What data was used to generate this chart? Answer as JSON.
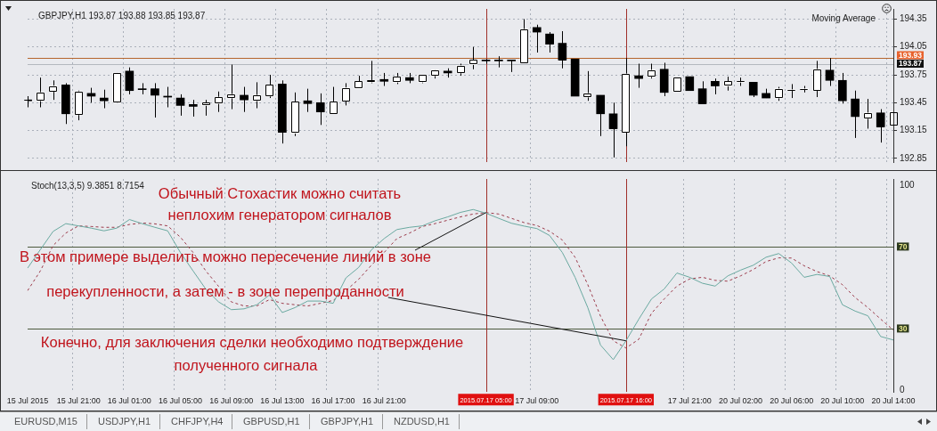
{
  "chart_data": [
    {
      "type": "candlestick",
      "title": "GBPJPY,H1 193.87 193.88 193.85 193.87",
      "annotations": [
        "Moving Average"
      ],
      "categories": [
        "15 Jul 2015",
        null,
        null,
        null,
        "15 Jul 21:00",
        null,
        null,
        null,
        "16 Jul 01:00",
        null,
        null,
        null,
        "16 Jul 05:00",
        null,
        null,
        null,
        "16 Jul 09:00",
        null,
        null,
        null,
        "16 Jul 13:00",
        null,
        null,
        null,
        "16 Jul 17:00",
        null,
        null,
        null,
        "16 Jul 21:00",
        null,
        null,
        null,
        null,
        null,
        null,
        null,
        "2015.07.17 05:00",
        null,
        null,
        null,
        "17 Jul 09:00",
        null,
        null,
        null,
        null,
        null,
        null,
        "2015.07.17 16:00",
        null,
        null,
        null,
        null,
        "17 Jul 21:00",
        null,
        null,
        null,
        "20 Jul 02:00",
        null,
        null,
        null,
        "20 Jul 06:00",
        null,
        null,
        null,
        "20 Jul 10:00",
        null,
        null,
        null,
        "20 Jul 14:00"
      ],
      "ohlc": [
        [
          193.48,
          193.52,
          193.4,
          193.47
        ],
        [
          193.47,
          193.72,
          193.4,
          193.56
        ],
        [
          193.57,
          193.69,
          193.48,
          193.63
        ],
        [
          193.64,
          193.66,
          193.22,
          193.33
        ],
        [
          193.32,
          193.58,
          193.26,
          193.57
        ],
        [
          193.55,
          193.61,
          193.45,
          193.52
        ],
        [
          193.5,
          193.59,
          193.39,
          193.47
        ],
        [
          193.45,
          193.77,
          193.45,
          193.77
        ],
        [
          193.79,
          193.83,
          193.54,
          193.58
        ],
        [
          193.6,
          193.66,
          193.54,
          193.59
        ],
        [
          193.6,
          193.66,
          193.29,
          193.53
        ],
        [
          193.52,
          193.62,
          193.4,
          193.51
        ],
        [
          193.5,
          193.54,
          193.31,
          193.42
        ],
        [
          193.43,
          193.48,
          193.3,
          193.41
        ],
        [
          193.42,
          193.48,
          193.31,
          193.45
        ],
        [
          193.44,
          193.57,
          193.35,
          193.51
        ],
        [
          193.5,
          193.86,
          193.38,
          193.54
        ],
        [
          193.53,
          193.62,
          193.35,
          193.48
        ],
        [
          193.47,
          193.67,
          193.39,
          193.53
        ],
        [
          193.52,
          193.75,
          193.5,
          193.64
        ],
        [
          193.65,
          193.69,
          193.01,
          193.13
        ],
        [
          193.12,
          193.56,
          193.09,
          193.46
        ],
        [
          193.47,
          193.6,
          193.35,
          193.44
        ],
        [
          193.45,
          193.55,
          193.21,
          193.35
        ],
        [
          193.33,
          193.62,
          193.33,
          193.46
        ],
        [
          193.47,
          193.66,
          193.42,
          193.61
        ],
        [
          193.6,
          193.74,
          193.6,
          193.68
        ],
        [
          193.67,
          193.9,
          193.66,
          193.69
        ],
        [
          193.7,
          193.77,
          193.63,
          193.68
        ],
        [
          193.67,
          193.77,
          193.65,
          193.73
        ],
        [
          193.72,
          193.77,
          193.66,
          193.69
        ],
        [
          193.67,
          193.75,
          193.66,
          193.75
        ],
        [
          193.74,
          193.8,
          193.71,
          193.8
        ],
        [
          193.79,
          193.82,
          193.72,
          193.77
        ],
        [
          193.77,
          193.87,
          193.74,
          193.85
        ],
        [
          193.86,
          194.05,
          193.81,
          193.91
        ],
        [
          193.91,
          193.92,
          193.87,
          193.9
        ],
        [
          193.91,
          193.95,
          193.83,
          193.9
        ],
        [
          193.91,
          193.91,
          193.78,
          193.9
        ],
        [
          193.88,
          194.35,
          193.88,
          194.24
        ],
        [
          194.26,
          194.29,
          193.99,
          194.21
        ],
        [
          194.19,
          194.21,
          193.99,
          194.08
        ],
        [
          194.09,
          194.22,
          193.82,
          193.91
        ],
        [
          193.92,
          193.92,
          193.52,
          193.52
        ],
        [
          193.51,
          193.79,
          193.47,
          193.55
        ],
        [
          193.53,
          193.53,
          193.09,
          193.33
        ],
        [
          193.33,
          193.45,
          192.86,
          193.17
        ],
        [
          193.13,
          193.93,
          192.98,
          193.76
        ],
        [
          193.74,
          193.87,
          193.61,
          193.71
        ],
        [
          193.73,
          193.87,
          193.71,
          193.8
        ],
        [
          193.81,
          193.88,
          193.52,
          193.56
        ],
        [
          193.57,
          193.72,
          193.57,
          193.72
        ],
        [
          193.73,
          193.73,
          193.58,
          193.58
        ],
        [
          193.6,
          193.68,
          193.44,
          193.44
        ],
        [
          193.68,
          193.71,
          193.54,
          193.63
        ],
        [
          193.63,
          193.73,
          193.58,
          193.68
        ],
        [
          193.67,
          193.72,
          193.63,
          193.68
        ],
        [
          193.67,
          193.67,
          193.51,
          193.53
        ],
        [
          193.55,
          193.6,
          193.5,
          193.5
        ],
        [
          193.5,
          193.62,
          193.47,
          193.6
        ],
        [
          193.58,
          193.65,
          193.5,
          193.59
        ],
        [
          193.59,
          193.63,
          193.56,
          193.6
        ],
        [
          193.58,
          193.9,
          193.51,
          193.81
        ],
        [
          193.8,
          193.93,
          193.63,
          193.69
        ],
        [
          193.69,
          193.77,
          193.44,
          193.47
        ],
        [
          193.49,
          193.58,
          193.07,
          193.3
        ],
        [
          193.28,
          193.49,
          193.17,
          193.34
        ],
        [
          193.34,
          193.38,
          193.02,
          193.19
        ],
        [
          193.21,
          193.47,
          193.14,
          193.35
        ]
      ],
      "colors": [
        "#000000",
        "#ffffff",
        "#ffffff",
        "#000000",
        "#ffffff",
        "#000000",
        "#000000",
        "#ffffff",
        "#000000",
        "#000000",
        "#000000",
        "#000000",
        "#000000",
        "#000000",
        "#ffffff",
        "#ffffff",
        "#ffffff",
        "#000000",
        "#ffffff",
        "#ffffff",
        "#000000",
        "#ffffff",
        "#000000",
        "#000000",
        "#ffffff",
        "#ffffff",
        "#ffffff",
        "#ffffff",
        "#000000",
        "#ffffff",
        "#000000",
        "#ffffff",
        "#ffffff",
        "#000000",
        "#ffffff",
        "#ffffff",
        "#000000",
        "#000000",
        "#000000",
        "#ffffff",
        "#000000",
        "#000000",
        "#000000",
        "#000000",
        "#ffffff",
        "#000000",
        "#000000",
        "#ffffff",
        "#000000",
        "#ffffff",
        "#000000",
        "#ffffff",
        "#000000",
        "#000000",
        "#000000",
        "#ffffff",
        "#ffffff",
        "#000000",
        "#000000",
        "#ffffff",
        "#ffffff",
        "#ffffff",
        "#ffffff",
        "#000000",
        "#000000",
        "#000000",
        "#ffffff",
        "#000000",
        "#ffffff"
      ],
      "ylim": [
        192.81,
        194.46
      ],
      "yticks": [
        192.85,
        193.15,
        193.45,
        193.75,
        194.05,
        194.35
      ],
      "ref_lines": [
        {
          "axis": "y",
          "value": 193.93,
          "label": "193.93",
          "color": "#b5652d"
        },
        {
          "axis": "y",
          "value": 193.87,
          "label": "193.87",
          "color": "#b4b8bf"
        },
        {
          "axis": "x",
          "value": "2015.07.17 05:00",
          "color": "#a0302a"
        },
        {
          "axis": "x",
          "value": "2015.07.17 16:00",
          "color": "#a0302a"
        }
      ],
      "grid": true,
      "tick_labels": "y",
      "legend": false
    },
    {
      "type": "line",
      "title": "Stoch(13,3,5) 9.3851 8.7154",
      "categories": [
        "15 Jul 2015",
        null,
        null,
        null,
        "15 Jul 21:00",
        null,
        null,
        null,
        "16 Jul 01:00",
        null,
        null,
        null,
        "16 Jul 05:00",
        null,
        null,
        null,
        "16 Jul 09:00",
        null,
        null,
        null,
        "16 Jul 13:00",
        null,
        null,
        null,
        "16 Jul 17:00",
        null,
        null,
        null,
        "16 Jul 21:00",
        null,
        null,
        null,
        null,
        null,
        null,
        null,
        "2015.07.17 05:00",
        null,
        null,
        null,
        "17 Jul 09:00",
        null,
        null,
        null,
        null,
        null,
        null,
        "2015.07.17 16:00",
        null,
        null,
        null,
        null,
        "17 Jul 21:00",
        null,
        null,
        null,
        "20 Jul 02:00",
        null,
        null,
        null,
        "20 Jul 06:00",
        null,
        null,
        null,
        "20 Jul 10:00",
        null,
        null,
        null,
        "20 Jul 14:00"
      ],
      "series": [
        {
          "color": "#6aa9a0",
          "line_style": "solid",
          "values": [
            59.5,
            68.5,
            77.4,
            81.2,
            80.1,
            79,
            77.7,
            79,
            83.2,
            81.2,
            79.4,
            77.7,
            67.1,
            58.1,
            49.2,
            43,
            39.2,
            39.6,
            41.6,
            46.4,
            37.8,
            40.2,
            43.4,
            43.4,
            42.3,
            54.7,
            59.8,
            68.4,
            73.9,
            78.3,
            79.4,
            80.1,
            82.6,
            84.5,
            86.7,
            88.1,
            86.3,
            83.8,
            81.4,
            80,
            78.8,
            75.4,
            67.1,
            55,
            40.2,
            21.9,
            14.8,
            24,
            34.5,
            44.4,
            49.3,
            57.1,
            55,
            52.1,
            50.7,
            55.7,
            58.5,
            60.9,
            64.8,
            66.6,
            62,
            55,
            56.4,
            55.4,
            41.6,
            38.5,
            36.2,
            26.1,
            24.4
          ]
        },
        {
          "color": "#9b3a4a",
          "line_style": "dashed",
          "values": [
            48.5,
            58.1,
            70.5,
            76.6,
            80.1,
            79.8,
            79.4,
            79.4,
            80.8,
            81.5,
            81.1,
            80.1,
            74.6,
            67.1,
            58.1,
            50.6,
            43,
            41,
            41,
            44.1,
            42.3,
            41.6,
            41,
            42.3,
            43.7,
            48.5,
            54,
            60.9,
            67.1,
            73.9,
            76.6,
            79.8,
            81.2,
            82.9,
            84.5,
            85.9,
            86.6,
            85.9,
            83.8,
            81.7,
            80.3,
            77.5,
            73.2,
            64.8,
            51.4,
            36,
            24,
            20.5,
            24.7,
            37.4,
            44.4,
            50.7,
            54.2,
            55,
            53.5,
            53.1,
            55.7,
            58.8,
            62.7,
            64.5,
            64.4,
            60.6,
            57.8,
            55.7,
            51.4,
            45.1,
            40.2,
            34.6,
            29.2
          ]
        }
      ],
      "ylim": [
        -1,
        103
      ],
      "yticks": [
        0,
        100
      ],
      "ref_lines": [
        {
          "axis": "y",
          "value": 70,
          "label": "70",
          "color": "#4d5a3e"
        },
        {
          "axis": "y",
          "value": 30,
          "label": "30",
          "color": "#4d5a3e"
        },
        {
          "axis": "x",
          "value": "2015.07.17 05:00",
          "color": "#a0302a"
        },
        {
          "axis": "x",
          "value": "2015.07.17 16:00",
          "color": "#a0302a"
        }
      ],
      "annotations": [
        "Обычный Стохастик можно считать",
        "неплохим генератором сигналов",
        {
          "text": "В этом примере выделить можно пересечение линий в зоне",
          "x": "2015.07.17 05:00",
          "y": 86.6
        },
        {
          "text": "перекупленности, а затем - в зоне перепроданности",
          "x": "2015.07.17 16:00",
          "y": 24
        },
        "Конечно, для заключения сделки необходимо подтверждение",
        "полученного сигнала"
      ],
      "grid": "x",
      "legend": false
    },
    {
      "type": "other",
      "annotations": [
        "EURUSD,M15",
        "USDJPY,H1",
        "CHFJPY,H4",
        "GBPUSD,H1",
        "GBPJPY,H1",
        "NZDUSD,H1"
      ]
    }
  ]
}
